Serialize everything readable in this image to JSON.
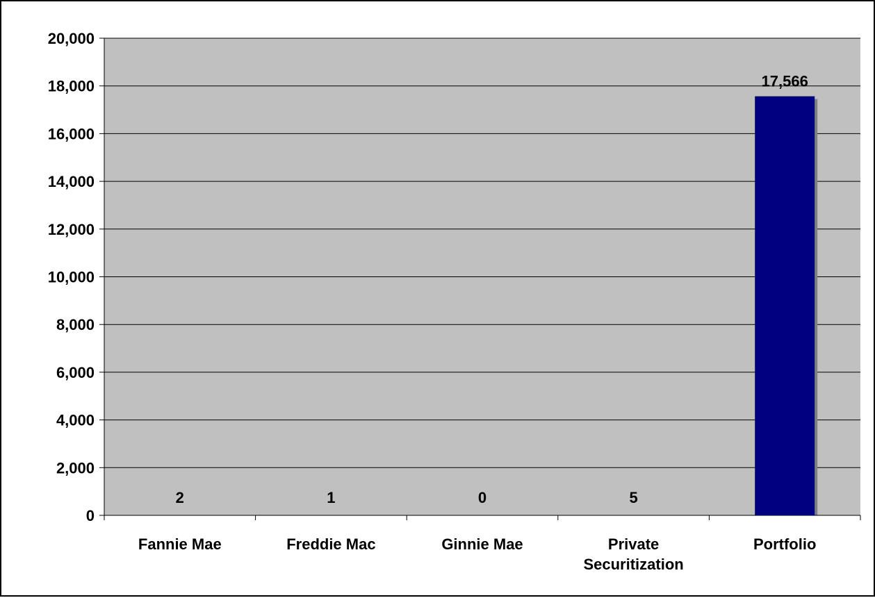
{
  "chart_data": {
    "type": "bar",
    "categories": [
      "Fannie Mae",
      "Freddie Mac",
      "Ginnie Mae",
      "Private Securitization",
      "Portfolio"
    ],
    "category_lines": [
      [
        "Fannie Mae"
      ],
      [
        "Freddie Mac"
      ],
      [
        "Ginnie Mae"
      ],
      [
        "Private",
        "Securitization"
      ],
      [
        "Portfolio"
      ]
    ],
    "values": [
      2,
      1,
      0,
      5,
      17566
    ],
    "data_labels": [
      "2",
      "1",
      "0",
      "5",
      "17,566"
    ],
    "title": "",
    "xlabel": "",
    "ylabel": "",
    "ylim": [
      0,
      20000
    ],
    "yticks": [
      0,
      2000,
      4000,
      6000,
      8000,
      10000,
      12000,
      14000,
      16000,
      18000,
      20000
    ],
    "ytick_labels": [
      "0",
      "2,000",
      "4,000",
      "6,000",
      "8,000",
      "10,000",
      "12,000",
      "14,000",
      "16,000",
      "18,000",
      "20,000"
    ],
    "grid": true,
    "legend": "none",
    "colors": {
      "plot_background": "#c0c0c0",
      "bar": "#000080",
      "bar_shadow": "#808080",
      "gridline": "#000000"
    }
  }
}
